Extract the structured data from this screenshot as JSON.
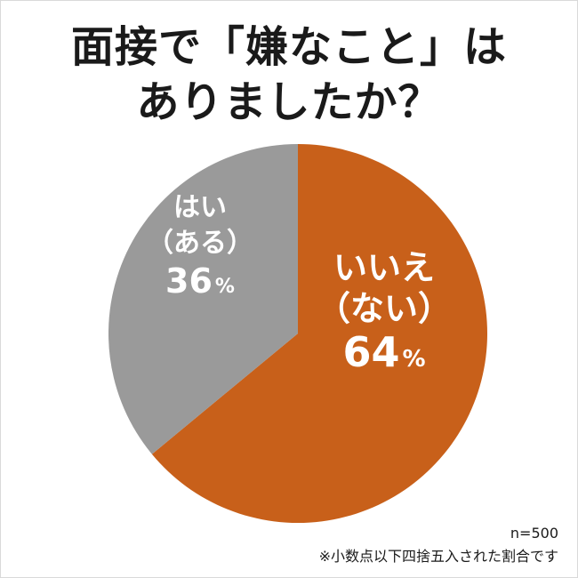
{
  "title_line1": "面接で「嫌なこと」は",
  "title_line2": "ありましたか？",
  "sample_size": "n=500",
  "footnote": "※小数点以下四捨五入された割合です",
  "colors": {
    "no": "#c8601a",
    "yes": "#9a9a9a",
    "label": "#ffffff"
  },
  "chart_data": {
    "type": "pie",
    "title": "面接で「嫌なこと」はありましたか？",
    "start": "12 o'clock, clockwise",
    "slices": [
      {
        "key": "no",
        "label_lines": [
          "いいえ",
          "（ない）"
        ],
        "value": 64,
        "value_text": "64",
        "unit": "%"
      },
      {
        "key": "yes",
        "label_lines": [
          "はい",
          "（ある）"
        ],
        "value": 36,
        "value_text": "36",
        "unit": "%"
      }
    ]
  }
}
